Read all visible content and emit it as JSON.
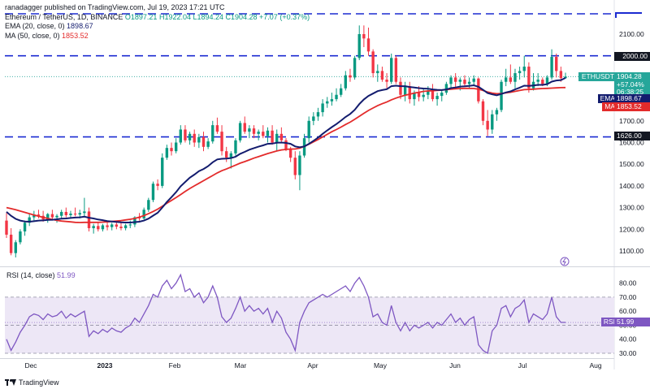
{
  "header": {
    "author_line": "ranadagger published on TradingView.com, Jul 19, 2023 17:21 UTC",
    "symbol": "Ethereum / TetherUS, 1D, BINANCE",
    "ohlc": "O1897.21  H1922.04  L1894.24  C1904.28  +7.07 (+0.37%)",
    "ema_label": "EMA (20, close, 0)",
    "ema_value": "1898.67",
    "ma_label": "MA (50, close, 0)",
    "ma_value": "1853.52"
  },
  "price_axis": {
    "ticks": [
      "2100.00",
      "1900.00",
      "1800.00",
      "1700.00",
      "1600.00",
      "1500.00",
      "1400.00",
      "1300.00",
      "1200.00",
      "1100.00"
    ]
  },
  "price_tags": {
    "level_2000": "2000.00",
    "symbol": "ETHUSDT",
    "close": "1904.28",
    "change": "+57.04%",
    "countdown": "06:38:25",
    "ema_tag": "EMA",
    "ema_value": "1898.67",
    "ma_tag": "MA",
    "ma_value": "1853.52",
    "level_1626": "1626.00"
  },
  "rsi": {
    "label": "RSI (14, close)",
    "value": "51.99",
    "tag": "RSI",
    "ticks": [
      "80.00",
      "70.00",
      "60.00",
      "50.00",
      "40.00",
      "30.00"
    ]
  },
  "time_axis": {
    "labels": [
      "Dec",
      "2023",
      "Feb",
      "Mar",
      "Apr",
      "May",
      "Jun",
      "Jul",
      "Aug"
    ]
  },
  "footer": {
    "brand": "TradingView"
  },
  "colors": {
    "up": "#089981",
    "down": "#f23645",
    "ema": "#131c6e",
    "ma": "#e32b2b",
    "level": "#1b2bd1",
    "rsi": "#7e57c2",
    "rsi_band": "#ede7f6",
    "tag_blue": "#2962ff",
    "close_tag": "#26a69a"
  },
  "chart_data": {
    "type": "candlestick",
    "symbol": "ETHUSDT",
    "interval": "1D",
    "horizontal_levels": [
      2000,
      1626
    ],
    "price_range": [
      1060,
      2180
    ],
    "rsi_range": [
      25,
      88
    ],
    "rsi_levels": [
      70,
      50,
      30
    ],
    "candles_ohlc_approx": [
      [
        1240,
        1275,
        1160,
        1175
      ],
      [
        1175,
        1205,
        1080,
        1090
      ],
      [
        1090,
        1150,
        1070,
        1140
      ],
      [
        1140,
        1200,
        1130,
        1190
      ],
      [
        1190,
        1240,
        1170,
        1230
      ],
      [
        1230,
        1270,
        1215,
        1255
      ],
      [
        1255,
        1285,
        1235,
        1268
      ],
      [
        1268,
        1290,
        1250,
        1262
      ],
      [
        1262,
        1285,
        1235,
        1245
      ],
      [
        1245,
        1275,
        1230,
        1270
      ],
      [
        1270,
        1290,
        1240,
        1255
      ],
      [
        1255,
        1270,
        1230,
        1262
      ],
      [
        1262,
        1290,
        1250,
        1280
      ],
      [
        1280,
        1300,
        1255,
        1265
      ],
      [
        1265,
        1285,
        1250,
        1272
      ],
      [
        1272,
        1300,
        1260,
        1268
      ],
      [
        1268,
        1290,
        1250,
        1275
      ],
      [
        1275,
        1345,
        1260,
        1282
      ],
      [
        1282,
        1300,
        1190,
        1205
      ],
      [
        1205,
        1225,
        1180,
        1215
      ],
      [
        1215,
        1230,
        1190,
        1200
      ],
      [
        1200,
        1225,
        1190,
        1218
      ],
      [
        1218,
        1240,
        1195,
        1210
      ],
      [
        1210,
        1230,
        1195,
        1222
      ],
      [
        1222,
        1240,
        1200,
        1212
      ],
      [
        1212,
        1230,
        1195,
        1205
      ],
      [
        1205,
        1225,
        1195,
        1218
      ],
      [
        1218,
        1240,
        1205,
        1222
      ],
      [
        1222,
        1260,
        1210,
        1255
      ],
      [
        1255,
        1275,
        1240,
        1250
      ],
      [
        1250,
        1300,
        1245,
        1290
      ],
      [
        1290,
        1345,
        1280,
        1335
      ],
      [
        1335,
        1420,
        1325,
        1410
      ],
      [
        1410,
        1430,
        1380,
        1400
      ],
      [
        1400,
        1550,
        1390,
        1530
      ],
      [
        1530,
        1590,
        1520,
        1575
      ],
      [
        1575,
        1600,
        1540,
        1560
      ],
      [
        1560,
        1620,
        1550,
        1600
      ],
      [
        1600,
        1680,
        1590,
        1660
      ],
      [
        1660,
        1680,
        1600,
        1610
      ],
      [
        1610,
        1650,
        1590,
        1640
      ],
      [
        1640,
        1660,
        1580,
        1600
      ],
      [
        1600,
        1640,
        1575,
        1625
      ],
      [
        1625,
        1650,
        1560,
        1580
      ],
      [
        1580,
        1620,
        1570,
        1605
      ],
      [
        1605,
        1700,
        1595,
        1680
      ],
      [
        1680,
        1715,
        1640,
        1650
      ],
      [
        1650,
        1680,
        1540,
        1560
      ],
      [
        1560,
        1580,
        1510,
        1530
      ],
      [
        1530,
        1560,
        1480,
        1550
      ],
      [
        1550,
        1620,
        1540,
        1610
      ],
      [
        1610,
        1700,
        1600,
        1690
      ],
      [
        1690,
        1720,
        1640,
        1650
      ],
      [
        1650,
        1680,
        1620,
        1665
      ],
      [
        1665,
        1680,
        1620,
        1640
      ],
      [
        1640,
        1660,
        1610,
        1650
      ],
      [
        1650,
        1680,
        1620,
        1630
      ],
      [
        1630,
        1670,
        1600,
        1655
      ],
      [
        1655,
        1680,
        1590,
        1600
      ],
      [
        1600,
        1660,
        1560,
        1640
      ],
      [
        1640,
        1670,
        1600,
        1610
      ],
      [
        1610,
        1620,
        1560,
        1570
      ],
      [
        1570,
        1580,
        1510,
        1530
      ],
      [
        1530,
        1560,
        1430,
        1450
      ],
      [
        1450,
        1560,
        1380,
        1540
      ],
      [
        1540,
        1640,
        1530,
        1620
      ],
      [
        1620,
        1720,
        1600,
        1700
      ],
      [
        1700,
        1740,
        1680,
        1720
      ],
      [
        1720,
        1760,
        1700,
        1740
      ],
      [
        1740,
        1800,
        1720,
        1780
      ],
      [
        1780,
        1810,
        1760,
        1790
      ],
      [
        1790,
        1830,
        1770,
        1800
      ],
      [
        1800,
        1850,
        1790,
        1820
      ],
      [
        1820,
        1870,
        1810,
        1850
      ],
      [
        1850,
        1930,
        1840,
        1910
      ],
      [
        1910,
        1940,
        1880,
        1900
      ],
      [
        1900,
        2000,
        1890,
        1990
      ],
      [
        1990,
        2140,
        1980,
        2100
      ],
      [
        2100,
        2140,
        2040,
        2080
      ],
      [
        2080,
        2130,
        2000,
        2020
      ],
      [
        2020,
        2030,
        1900,
        1920
      ],
      [
        1920,
        1960,
        1880,
        1930
      ],
      [
        1930,
        1950,
        1880,
        1890
      ],
      [
        1890,
        1920,
        1850,
        1880
      ],
      [
        1880,
        2010,
        1870,
        1990
      ],
      [
        1990,
        2000,
        1870,
        1880
      ],
      [
        1880,
        1900,
        1800,
        1820
      ],
      [
        1820,
        1880,
        1790,
        1860
      ],
      [
        1860,
        1880,
        1780,
        1800
      ],
      [
        1800,
        1840,
        1770,
        1830
      ],
      [
        1830,
        1860,
        1790,
        1810
      ],
      [
        1810,
        1850,
        1790,
        1820
      ],
      [
        1820,
        1860,
        1800,
        1840
      ],
      [
        1840,
        1870,
        1790,
        1800
      ],
      [
        1800,
        1830,
        1770,
        1815
      ],
      [
        1815,
        1840,
        1790,
        1830
      ],
      [
        1830,
        1880,
        1820,
        1870
      ],
      [
        1870,
        1910,
        1850,
        1900
      ],
      [
        1900,
        1920,
        1850,
        1880
      ],
      [
        1880,
        1900,
        1840,
        1890
      ],
      [
        1890,
        1910,
        1860,
        1870
      ],
      [
        1870,
        1900,
        1850,
        1880
      ],
      [
        1880,
        1910,
        1860,
        1895
      ],
      [
        1895,
        1900,
        1780,
        1790
      ],
      [
        1790,
        1800,
        1680,
        1700
      ],
      [
        1700,
        1750,
        1630,
        1660
      ],
      [
        1660,
        1750,
        1640,
        1730
      ],
      [
        1730,
        1760,
        1700,
        1750
      ],
      [
        1750,
        1890,
        1740,
        1880
      ],
      [
        1880,
        1940,
        1860,
        1900
      ],
      [
        1900,
        1960,
        1870,
        1880
      ],
      [
        1880,
        1940,
        1850,
        1920
      ],
      [
        1920,
        1950,
        1890,
        1930
      ],
      [
        1930,
        2000,
        1900,
        1950
      ],
      [
        1950,
        1970,
        1830,
        1850
      ],
      [
        1850,
        1920,
        1840,
        1880
      ],
      [
        1880,
        1920,
        1860,
        1890
      ],
      [
        1890,
        1900,
        1860,
        1870
      ],
      [
        1870,
        1910,
        1860,
        1900
      ],
      [
        1900,
        2030,
        1890,
        1995
      ],
      [
        1995,
        2010,
        1900,
        1930
      ],
      [
        1930,
        1950,
        1880,
        1897
      ],
      [
        1897,
        1922,
        1894,
        1904
      ]
    ],
    "ema20_approx": [
      1280,
      1262,
      1248,
      1240,
      1236,
      1235,
      1237,
      1240,
      1241,
      1243,
      1244,
      1246,
      1249,
      1250,
      1252,
      1254,
      1255,
      1258,
      1253,
      1250,
      1245,
      1242,
      1238,
      1236,
      1234,
      1232,
      1231,
      1231,
      1233,
      1235,
      1240,
      1249,
      1263,
      1276,
      1300,
      1326,
      1348,
      1371,
      1398,
      1418,
      1438,
      1452,
      1468,
      1478,
      1491,
      1509,
      1522,
      1525,
      1526,
      1528,
      1535,
      1548,
      1557,
      1567,
      1574,
      1581,
      1587,
      1594,
      1595,
      1599,
      1600,
      1598,
      1594,
      1582,
      1578,
      1582,
      1594,
      1608,
      1623,
      1640,
      1656,
      1671,
      1685,
      1701,
      1718,
      1732,
      1751,
      1777,
      1799,
      1815,
      1826,
      1837,
      1842,
      1846,
      1860,
      1862,
      1860,
      1860,
      1856,
      1854,
      1851,
      1849,
      1848,
      1845,
      1843,
      1842,
      1845,
      1851,
      1854,
      1858,
      1859,
      1861,
      1864,
      1857,
      1843,
      1828,
      1822,
      1818,
      1824,
      1831,
      1836,
      1845,
      1853,
      1862,
      1861,
      1863,
      1866,
      1866,
      1869,
      1881,
      1886,
      1888,
      1898
    ],
    "ma50_approx": [
      1300,
      1295,
      1290,
      1284,
      1278,
      1272,
      1266,
      1260,
      1255,
      1250,
      1245,
      1241,
      1238,
      1236,
      1234,
      1232,
      1231,
      1232,
      1232,
      1232,
      1232,
      1233,
      1234,
      1236,
      1238,
      1240,
      1243,
      1246,
      1250,
      1256,
      1263,
      1272,
      1282,
      1293,
      1306,
      1320,
      1333,
      1346,
      1360,
      1374,
      1388,
      1400,
      1412,
      1424,
      1436,
      1448,
      1460,
      1470,
      1478,
      1487,
      1496,
      1505,
      1512,
      1520,
      1528,
      1535,
      1542,
      1549,
      1555,
      1561,
      1566,
      1568,
      1570,
      1570,
      1574,
      1582,
      1592,
      1603,
      1614,
      1626,
      1638,
      1650,
      1660,
      1671,
      1683,
      1694,
      1707,
      1721,
      1735,
      1748,
      1759,
      1770,
      1779,
      1787,
      1797,
      1805,
      1812,
      1818,
      1823,
      1828,
      1832,
      1836,
      1838,
      1839,
      1840,
      1842,
      1844,
      1846,
      1848,
      1849,
      1850,
      1850,
      1849,
      1846,
      1840,
      1833,
      1828,
      1825,
      1826,
      1829,
      1832,
      1836,
      1840,
      1844,
      1845,
      1846,
      1848,
      1849,
      1850,
      1851,
      1852,
      1853,
      1853.52
    ],
    "rsi14_approx": [
      40,
      32,
      38,
      45,
      50,
      56,
      58,
      57,
      54,
      58,
      56,
      57,
      60,
      55,
      58,
      56,
      58,
      60,
      42,
      46,
      44,
      47,
      45,
      48,
      46,
      45,
      48,
      50,
      55,
      52,
      58,
      64,
      72,
      70,
      78,
      82,
      76,
      80,
      86,
      74,
      76,
      70,
      73,
      66,
      70,
      78,
      70,
      56,
      52,
      55,
      62,
      70,
      60,
      64,
      60,
      62,
      58,
      62,
      52,
      60,
      55,
      45,
      40,
      32,
      52,
      60,
      66,
      68,
      70,
      72,
      70,
      72,
      74,
      76,
      78,
      74,
      80,
      84,
      78,
      70,
      56,
      58,
      52,
      50,
      64,
      52,
      46,
      52,
      46,
      50,
      48,
      50,
      52,
      48,
      52,
      50,
      54,
      58,
      52,
      55,
      50,
      54,
      56,
      36,
      32,
      30,
      46,
      50,
      62,
      64,
      56,
      62,
      64,
      68,
      52,
      58,
      56,
      54,
      58,
      70,
      56,
      52,
      51.99
    ]
  }
}
